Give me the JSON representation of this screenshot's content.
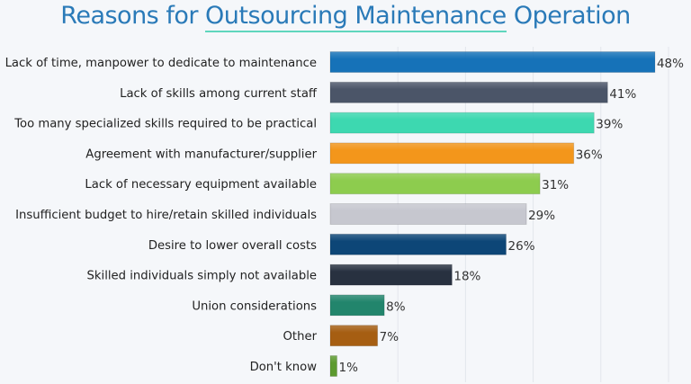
{
  "chart_data": {
    "type": "bar",
    "orientation": "horizontal",
    "title_parts": [
      "Reasons for ",
      "Outsourcing Maintenance",
      " Operation"
    ],
    "title": "Reasons for Outsourcing Maintenance Operation",
    "xlabel": "",
    "ylabel": "",
    "xlim": [
      0,
      50
    ],
    "grid": true,
    "value_suffix": "%",
    "categories": [
      "Lack of time, manpower to dedicate to maintenance",
      "Lack of skills among current staff",
      "Too many specialized skills required to be practical",
      "Agreement with manufacturer/supplier",
      "Lack of necessary equipment available",
      "Insufficient budget to hire/retain skilled individuals",
      "Desire to lower overall costs",
      "Skilled individuals simply not available",
      "Union considerations",
      "Other",
      "Don't know"
    ],
    "values": [
      48,
      41,
      39,
      36,
      31,
      29,
      26,
      18,
      8,
      7,
      1
    ],
    "labels": [
      "48%",
      "41%",
      "39%",
      "36%",
      "31%",
      "29%",
      "26%",
      "18%",
      "8%",
      "7%",
      "1%"
    ],
    "colors": [
      "#1672b8",
      "#4b5568",
      "#3dd8b0",
      "#f3961b",
      "#8dcc4e",
      "#c6c7cf",
      "#0d4677",
      "#283140",
      "#22856c",
      "#a65e12",
      "#5c9a2f"
    ]
  }
}
